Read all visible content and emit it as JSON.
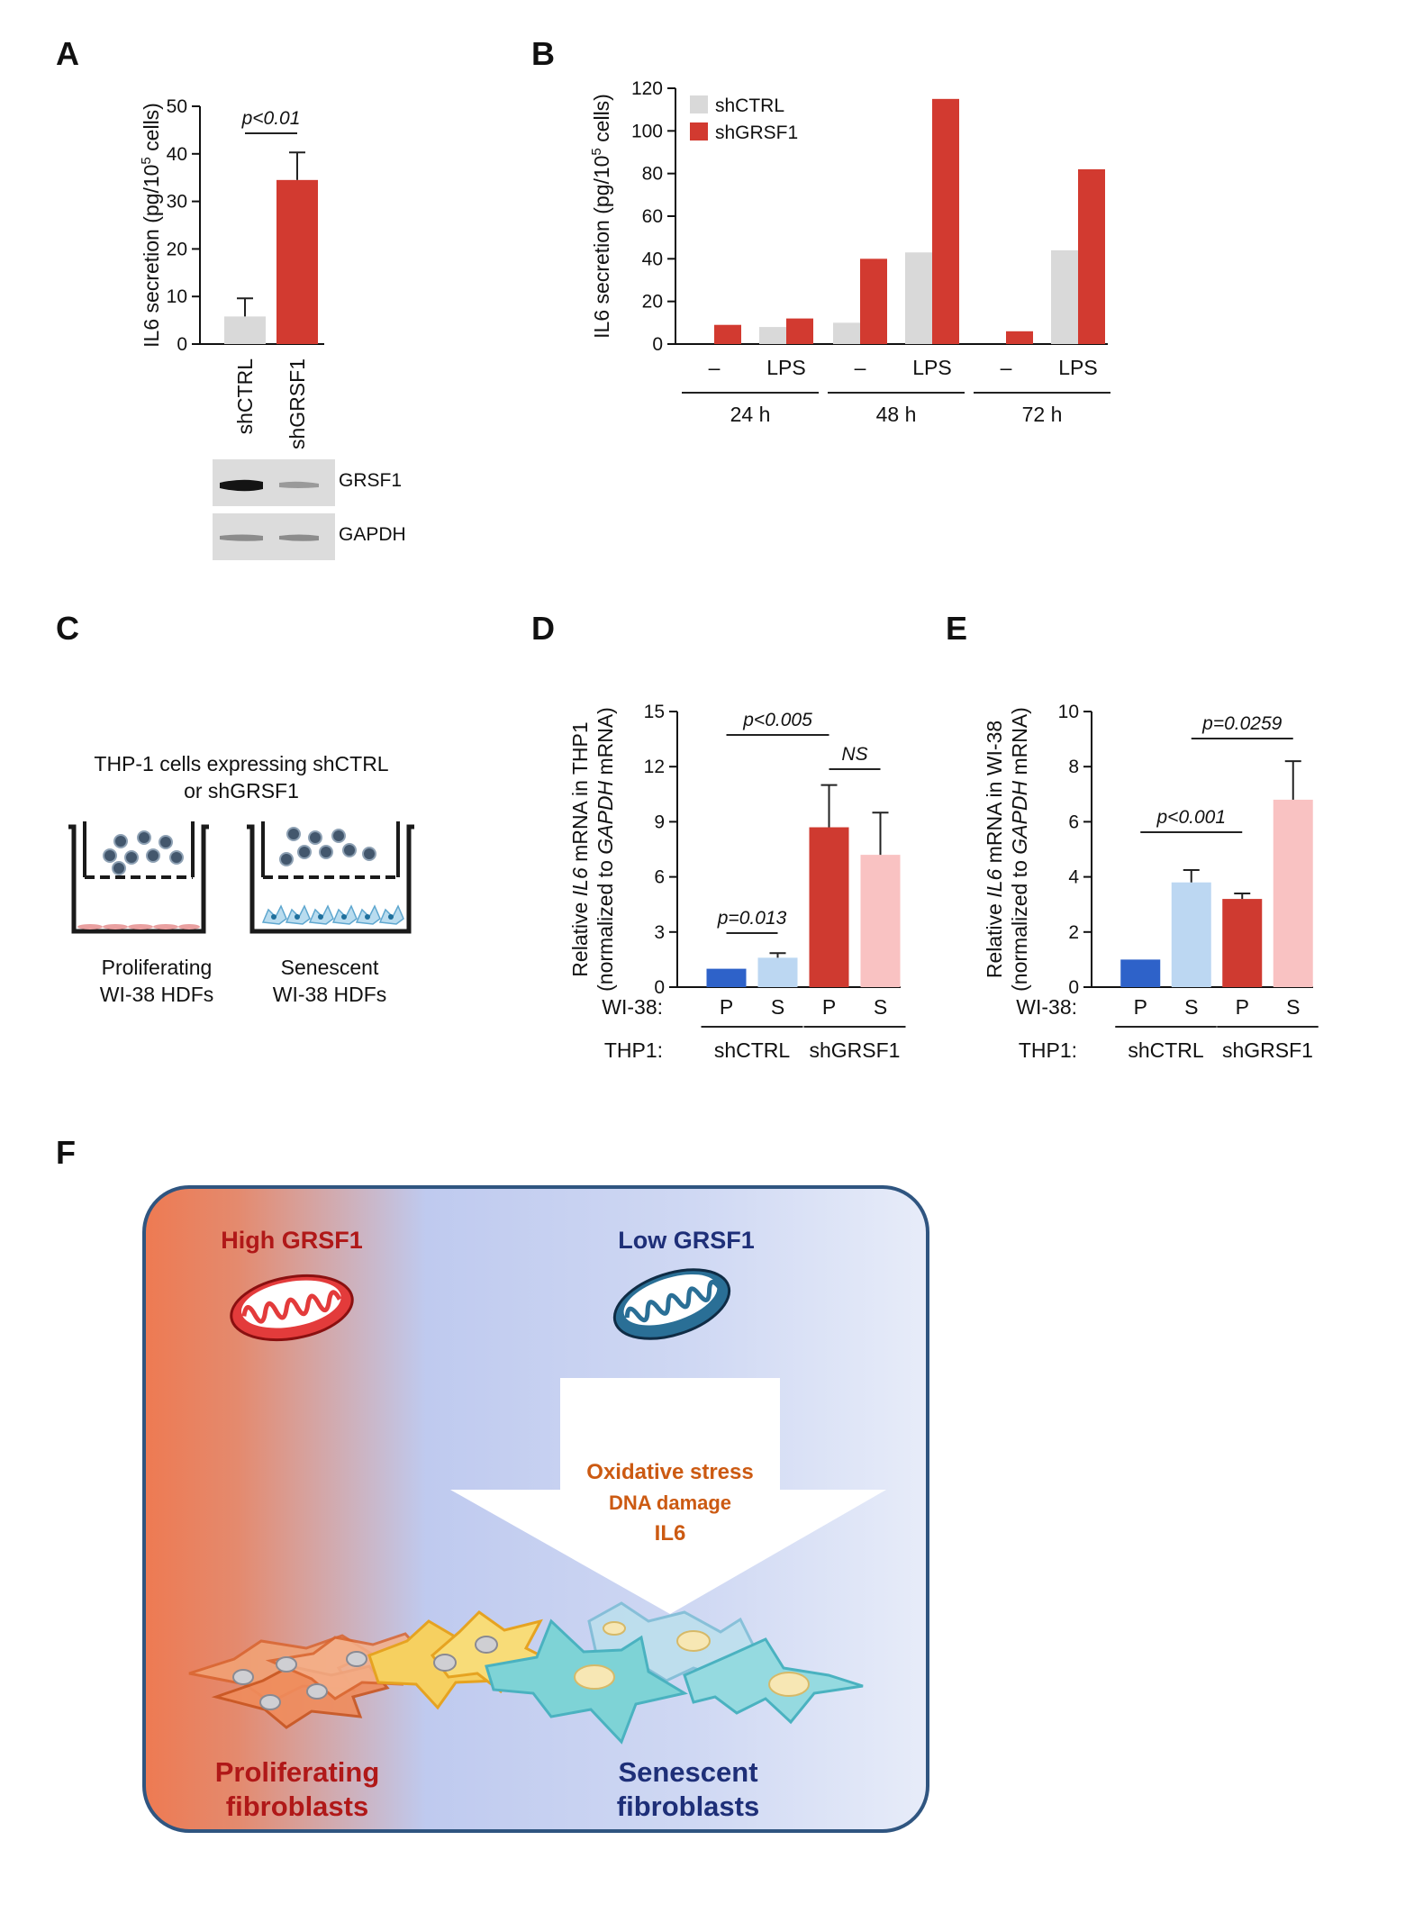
{
  "panels": {
    "a": {
      "label": "A",
      "p_value": "p<0.01",
      "blot_labels": [
        "GRSF1",
        "GAPDH"
      ]
    },
    "b": {
      "label": "B",
      "time_groups": [
        "24 h",
        "48 h",
        "72 h"
      ],
      "treatments": [
        "–",
        "LPS"
      ]
    },
    "c": {
      "label": "C",
      "title_line1": "THP-1 cells expressing shCTRL",
      "title_line2": "or shGRSF1",
      "left_caption_line1": "Proliferating",
      "left_caption_line2": "WI-38 HDFs",
      "right_caption_line1": "Senescent",
      "right_caption_line2": "WI-38 HDFs"
    },
    "d": {
      "label": "D",
      "row1_label": "WI-38:",
      "row2_label": "THP1:",
      "sig": [
        "p=0.013",
        "p<0.005",
        "NS"
      ]
    },
    "e": {
      "label": "E",
      "row1_label": "WI-38:",
      "row2_label": "THP1:",
      "sig": [
        "p<0.001",
        "p=0.0259"
      ]
    },
    "f": {
      "label": "F",
      "high": "High GRSF1",
      "low": "Low GRSF1",
      "effects": [
        "Oxidative stress",
        "DNA damage",
        "IL6"
      ],
      "left_line1": "Proliferating",
      "left_line2": "fibroblasts",
      "right_line1": "Senescent",
      "right_line2": "fibroblasts"
    }
  },
  "colors": {
    "shCTRL": "#d9d9d9",
    "shGRSF1": "#d23a30",
    "prolif_ctrl": "#2e62c9",
    "senes_ctrl": "#bcd7f2",
    "prolif_grsf1": "#cf3a30",
    "senes_grsf1": "#f9c2c2",
    "high_text": "#b01818",
    "low_text": "#1e2f78",
    "effect_text": "#cc5a12",
    "box_border": "#2f5580"
  },
  "chart_data": [
    {
      "panel": "A",
      "type": "bar",
      "ylabel": "IL6 secretion (pg/10^5 cells)",
      "ylim": [
        0,
        50
      ],
      "yticks": [
        0,
        10,
        20,
        30,
        40,
        50
      ],
      "categories": [
        "shCTRL",
        "shGRSF1"
      ],
      "values": [
        5.8,
        34.5
      ],
      "errors": [
        3.8,
        5.8
      ],
      "significance": [
        {
          "between": [
            0,
            1
          ],
          "label": "p<0.01"
        }
      ]
    },
    {
      "panel": "B",
      "type": "bar",
      "ylabel": "IL6 secretion (pg/10^5 cells)",
      "ylim": [
        0,
        120
      ],
      "yticks": [
        0,
        20,
        40,
        60,
        80,
        100,
        120
      ],
      "legend_position": "top-left",
      "categories": [
        "24 h –",
        "24 h LPS",
        "48 h –",
        "48 h LPS",
        "72 h –",
        "72 h LPS"
      ],
      "series": [
        {
          "name": "shCTRL",
          "values": [
            0,
            8,
            10,
            43,
            0,
            44
          ]
        },
        {
          "name": "shGRSF1",
          "values": [
            9,
            12,
            40,
            115,
            6,
            82
          ]
        }
      ]
    },
    {
      "panel": "D",
      "type": "bar",
      "ylabel": "Relative IL6 mRNA in THP1 (normalized to GAPDH mRNA)",
      "ylim": [
        0,
        15
      ],
      "yticks": [
        0,
        3,
        6,
        9,
        12,
        15
      ],
      "categories": [
        "P",
        "S",
        "P",
        "S"
      ],
      "groups": [
        "shCTRL",
        "shGRSF1"
      ],
      "values": [
        1.0,
        1.6,
        8.7,
        7.2
      ],
      "errors": [
        0,
        0.25,
        2.3,
        2.3
      ],
      "significance": [
        {
          "between": [
            0,
            1
          ],
          "label": "p=0.013"
        },
        {
          "between": [
            0,
            2
          ],
          "label": "p<0.005"
        },
        {
          "between": [
            2,
            3
          ],
          "label": "NS"
        }
      ]
    },
    {
      "panel": "E",
      "type": "bar",
      "ylabel": "Relative IL6 mRNA in WI-38 (normalized to GAPDH mRNA)",
      "ylim": [
        0,
        10
      ],
      "yticks": [
        0,
        2,
        4,
        6,
        8,
        10
      ],
      "categories": [
        "P",
        "S",
        "P",
        "S"
      ],
      "groups": [
        "shCTRL",
        "shGRSF1"
      ],
      "values": [
        1.0,
        3.8,
        3.2,
        6.8
      ],
      "errors": [
        0,
        0.45,
        0.2,
        1.4
      ],
      "significance": [
        {
          "between": [
            0,
            2
          ],
          "label": "p<0.001"
        },
        {
          "between": [
            1,
            3
          ],
          "label": "p=0.0259"
        }
      ]
    }
  ]
}
